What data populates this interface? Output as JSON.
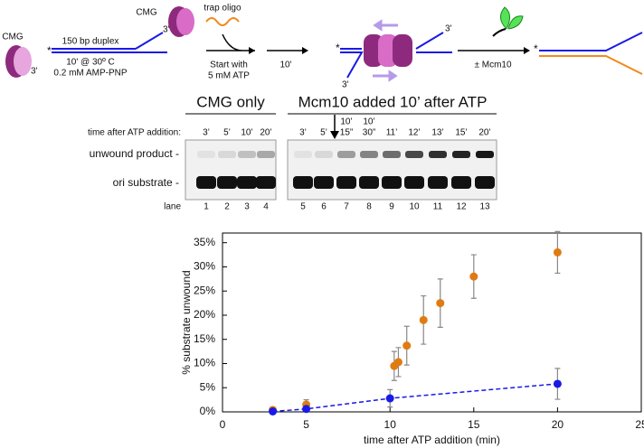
{
  "schematic": {
    "cmg_left": "CMG",
    "three_prime_1": "3'",
    "star_1": "*",
    "duplex": "150 bp duplex",
    "three_prime_2": "3'",
    "cmg_top": "CMG",
    "incubation": "10' @ 30º C",
    "nucleotide": "0.2 mM AMP-PNP",
    "trap": "trap oligo",
    "start_1": "Start with",
    "start_2": "5 mM ATP",
    "time_step": "10'",
    "star_2": "*",
    "three_prime_3": "3'",
    "three_prime_4": "3'",
    "mcm10": "± Mcm10",
    "star_3": "*"
  },
  "gel": {
    "cmg_only": "CMG only",
    "mcm10_header": "Mcm10 added 10’ after ATP",
    "time_label": "time after ATP addition:",
    "times": [
      [
        "3’"
      ],
      [
        "5’"
      ],
      [
        "10’"
      ],
      [
        "20’"
      ],
      [
        "3’"
      ],
      [
        "5’"
      ],
      [
        "10’",
        "15”"
      ],
      [
        "10’",
        "30”"
      ],
      [
        "11’"
      ],
      [
        "12’"
      ],
      [
        "13’"
      ],
      [
        "15’"
      ],
      [
        "20’"
      ]
    ],
    "product": "unwound product -",
    "substrate": "ori substrate -",
    "lane_label": "lane",
    "lanes": [
      1,
      2,
      3,
      4,
      5,
      6,
      7,
      8,
      9,
      10,
      11,
      12,
      13
    ]
  },
  "chart_data": {
    "type": "scatter",
    "x_label": "time after ATP addition (min)",
    "y_label": "% substrate unwound",
    "xlim": [
      0,
      25
    ],
    "xticks": [
      0,
      5,
      10,
      15,
      20,
      25
    ],
    "ylim": [
      0,
      37
    ],
    "yticks": [
      {
        "value": 0,
        "label": "0%"
      },
      {
        "value": 5,
        "label": "5%"
      },
      {
        "value": 10,
        "label": "10%"
      },
      {
        "value": 15,
        "label": "15%"
      },
      {
        "value": 20,
        "label": "20%"
      },
      {
        "value": 25,
        "label": "25%"
      },
      {
        "value": 30,
        "label": "30%"
      },
      {
        "value": 35,
        "label": "35%"
      }
    ],
    "series": [
      {
        "color": "#e07b12",
        "line": false,
        "x": [
          3,
          5,
          10.25,
          10.5,
          11,
          12,
          13,
          15,
          20
        ],
        "values": [
          0.4,
          1.5,
          9.5,
          10.3,
          13.7,
          19,
          22.5,
          28,
          33
        ],
        "errors": [
          0.3,
          1,
          3,
          3,
          4,
          5,
          5,
          4.5,
          4.3
        ]
      },
      {
        "color": "#1a1ae6",
        "line": true,
        "x": [
          3,
          5,
          10,
          20
        ],
        "values": [
          0.1,
          0.6,
          2.8,
          5.8
        ],
        "errors": [
          0,
          0.4,
          1.8,
          3.2
        ]
      }
    ]
  }
}
